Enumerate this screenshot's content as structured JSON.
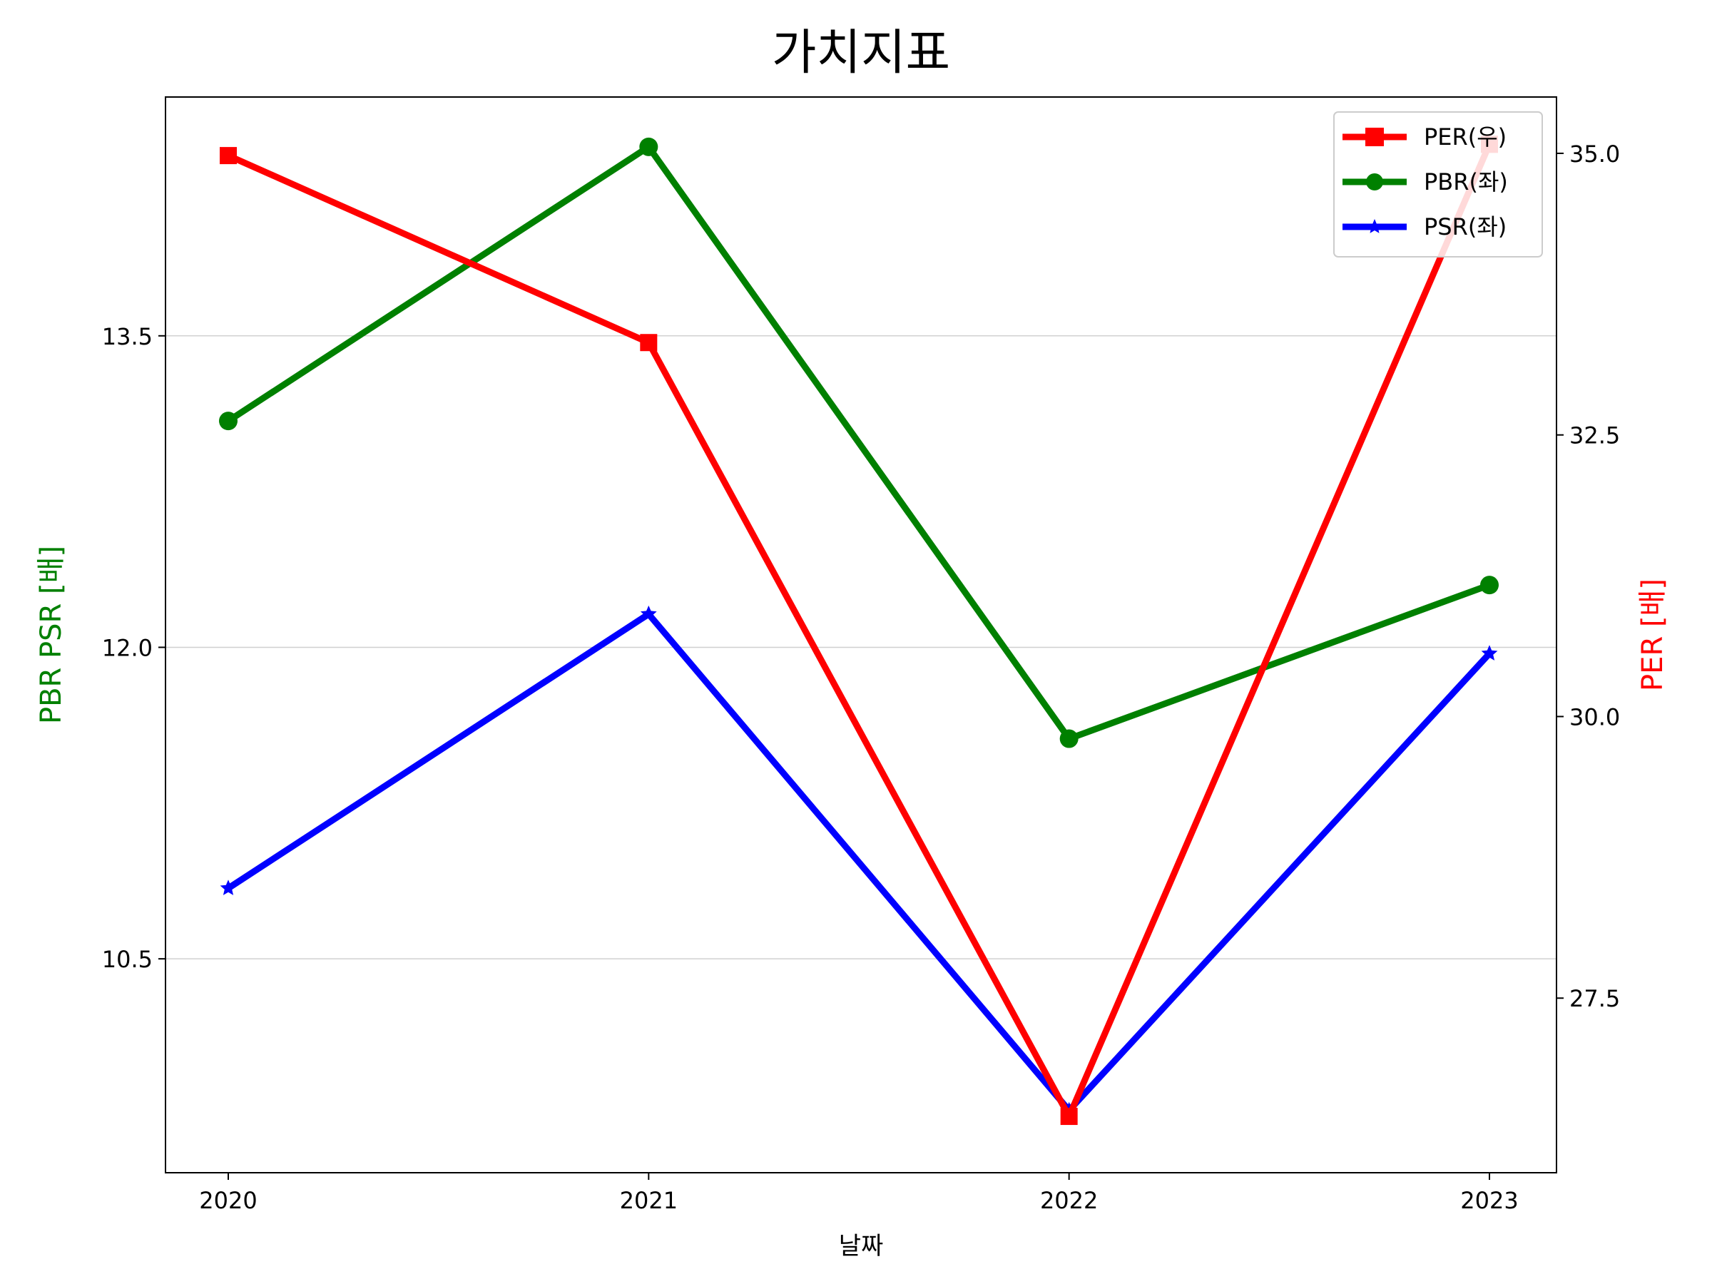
{
  "chart_data": {
    "type": "line",
    "title": "가치지표",
    "xlabel": "날짜",
    "ylabel_left": "PBR PSR [배]",
    "ylabel_right": "PER [배]",
    "ylabel_left_color": "#008000",
    "ylabel_right_color": "#ff0000",
    "categories": [
      "2020",
      "2021",
      "2022",
      "2023"
    ],
    "left_axis": {
      "ylim": [
        9.47,
        14.65
      ],
      "ticks": [
        10.5,
        12.0,
        13.5
      ],
      "tick_labels": [
        "10.5",
        "12.0",
        "13.5"
      ]
    },
    "right_axis": {
      "ylim": [
        25.95,
        35.5
      ],
      "ticks": [
        27.5,
        30.0,
        32.5,
        35.0
      ],
      "tick_labels": [
        "27.5",
        "30.0",
        "32.5",
        "35.0"
      ]
    },
    "grid": "horizontal (left axis)",
    "legend_position": "top-right",
    "series": [
      {
        "name": "PER(우)",
        "axis": "right",
        "color": "#ff0000",
        "marker": "square",
        "values": [
          34.98,
          33.32,
          26.45,
          35.08
        ]
      },
      {
        "name": "PBR(좌)",
        "axis": "left",
        "color": "#008000",
        "marker": "circle",
        "values": [
          13.09,
          14.41,
          11.56,
          12.3
        ]
      },
      {
        "name": "PSR(좌)",
        "axis": "left",
        "color": "#0000ff",
        "marker": "star",
        "values": [
          10.84,
          12.16,
          9.77,
          11.97
        ]
      }
    ]
  }
}
